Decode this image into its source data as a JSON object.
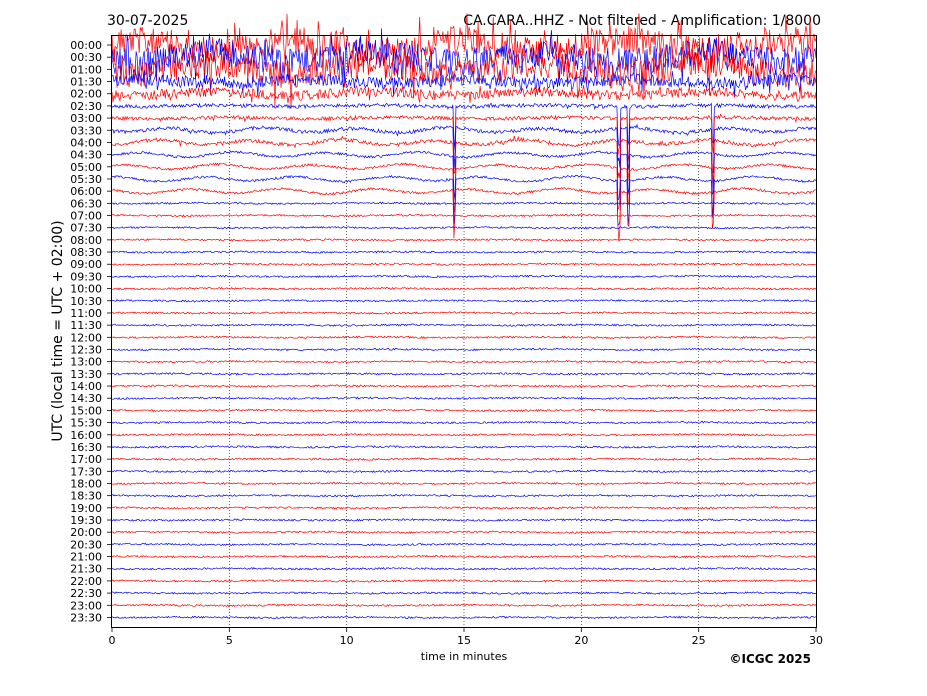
{
  "header": {
    "date": "30-07-2025",
    "title": "CA.CARA..HHZ - Not filtered - Amplification: 1/8000"
  },
  "footer": {
    "copyright": "©ICGC 2025"
  },
  "chart_data": {
    "type": "line",
    "subtype": "helicorder",
    "title": "CA.CARA..HHZ - Not filtered - Amplification: 1/8000",
    "xlabel": "time in minutes",
    "ylabel": "UTC (local time = UTC + 02:00)",
    "xlim": [
      0,
      30
    ],
    "x_ticks": [
      "0",
      "5",
      "10",
      "15",
      "20",
      "25",
      "30"
    ],
    "x_tick_values": [
      0,
      5,
      10,
      15,
      20,
      25,
      30
    ],
    "row_labels": [
      "00:00",
      "00:30",
      "01:00",
      "01:30",
      "02:00",
      "02:30",
      "03:00",
      "03:30",
      "04:00",
      "04:30",
      "05:00",
      "05:30",
      "06:00",
      "06:30",
      "07:00",
      "07:30",
      "08:00",
      "08:30",
      "09:00",
      "09:30",
      "10:00",
      "10:30",
      "11:00",
      "11:30",
      "12:00",
      "12:30",
      "13:00",
      "13:30",
      "14:00",
      "14:30",
      "15:00",
      "15:30",
      "16:00",
      "16:30",
      "17:00",
      "17:30",
      "18:00",
      "18:30",
      "19:00",
      "19:30",
      "20:00",
      "20:30",
      "21:00",
      "21:30",
      "22:00",
      "22:30",
      "23:00",
      "23:30"
    ],
    "trace_colors": [
      "#ff0000",
      "#0000ff"
    ],
    "grid": "vertical dotted at 5-minute intervals",
    "events_minutes": [
      14.6,
      21.6,
      22.0,
      25.6
    ],
    "event_row": "04:30"
  }
}
